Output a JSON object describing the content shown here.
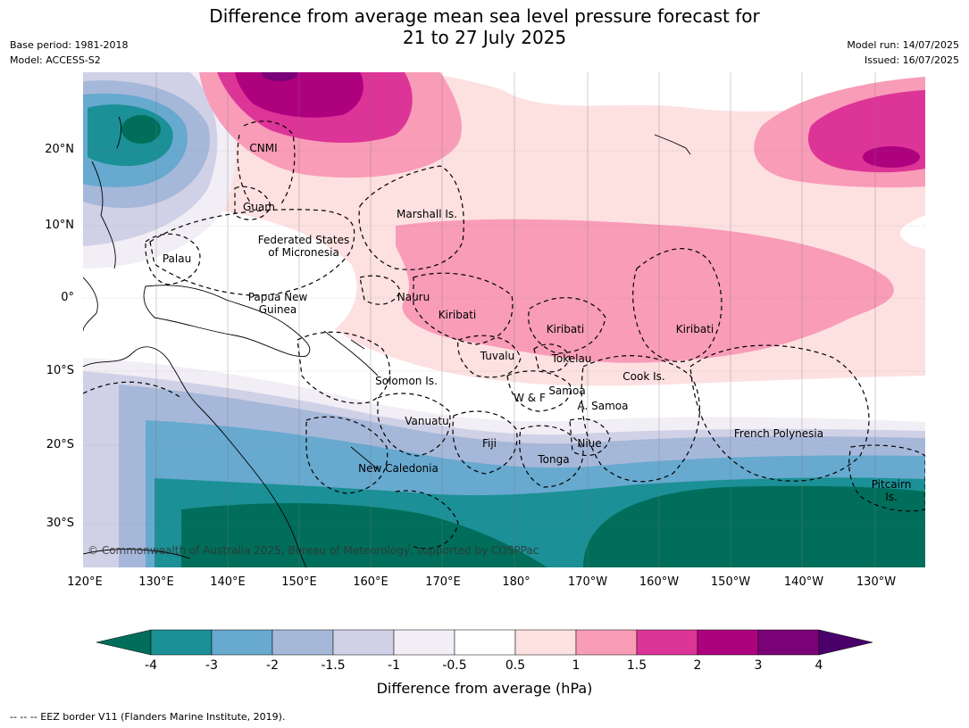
{
  "header": {
    "title_line1": "Difference from average mean sea level pressure forecast for",
    "title_line2": "21 to 27 July 2025",
    "base_period": "Base period: 1981-2018",
    "model": "Model: ACCESS-S2",
    "model_run": "Model run: 14/07/2025",
    "issued": "Issued: 16/07/2025"
  },
  "map": {
    "lat_labels": [
      "20°N",
      "10°N",
      "0°",
      "10°S",
      "20°S",
      "30°S"
    ],
    "lon_labels": [
      "120°E",
      "130°E",
      "140°E",
      "150°E",
      "160°E",
      "170°E",
      "180°",
      "170°W",
      "160°W",
      "150°W",
      "140°W",
      "130°W"
    ],
    "places": {
      "cnmi": "CNMI",
      "guam": "Guam",
      "marshall": "Marshall Is.",
      "fsm_line1": "Federated States",
      "fsm_line2": "of Micronesia",
      "palau": "Palau",
      "png_line1": "Papua New",
      "png_line2": "Guinea",
      "nauru": "Nauru",
      "kiribati_w": "Kiribati",
      "kiribati_c": "Kiribati",
      "kiribati_e": "Kiribati",
      "tuvalu": "Tuvalu",
      "tokelau": "Tokelau",
      "cook": "Cook Is.",
      "solomon": "Solomon Is.",
      "wf": "W & F",
      "samoa": "Samoa",
      "asamoa": "A. Samoa",
      "vanuatu": "Vanuatu",
      "fiji": "Fiji",
      "niue": "Niue",
      "tonga": "Tonga",
      "french_polynesia": "French Polynesia",
      "new_caledonia": "New Caledonia",
      "pitcairn_line1": "Pitcairn",
      "pitcairn_line2": "Is."
    },
    "copyright": "© Commonwealth of Australia 2025, Bureau of Meteorology, supported by COSPPac"
  },
  "colorbar": {
    "ticks": [
      "-4",
      "-3",
      "-2",
      "-1.5",
      "-1",
      "-0.5",
      "0.5",
      "1",
      "1.5",
      "2",
      "3",
      "4"
    ],
    "colors": [
      "#006e5a",
      "#1b9096",
      "#67a9cf",
      "#a6b8d9",
      "#d0d1e6",
      "#f2eef5",
      "#ffffff",
      "#fde0e0",
      "#f89cb8",
      "#dd3497",
      "#ae017e",
      "#7a0177",
      "#49006a"
    ],
    "title": "Difference from average (hPa)"
  },
  "footer": {
    "eez_note": "--  --  -- EEZ border V11 (Flanders Marine Institute, 2019)."
  }
}
